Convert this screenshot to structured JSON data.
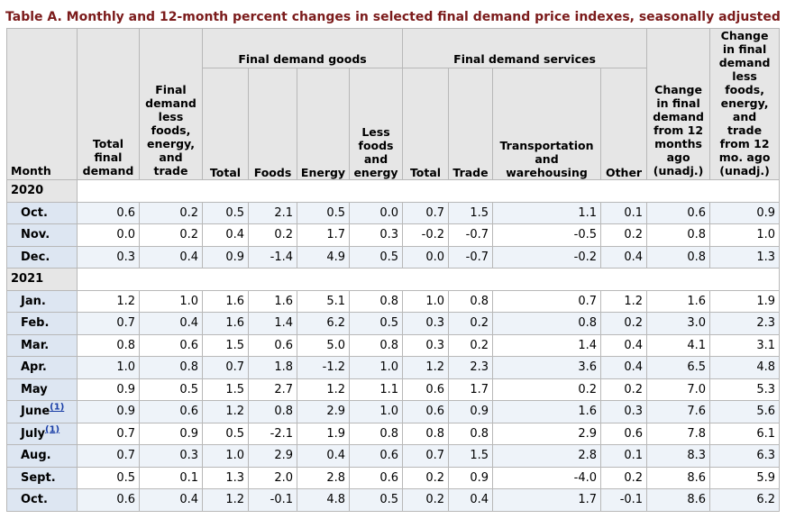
{
  "title": "Table A. Monthly and 12-month percent changes in selected final demand price indexes, seasonally adjusted",
  "header": {
    "month": "Month",
    "total_final_demand": [
      "Total",
      "final",
      "demand"
    ],
    "fd_less_fet": [
      "Final",
      "demand",
      "less",
      "foods,",
      "energy,",
      "and",
      "trade"
    ],
    "goods_group": "Final demand goods",
    "services_group": "Final demand services",
    "goods_total": "Total",
    "goods_foods": "Foods",
    "goods_energy": "Energy",
    "goods_less_fe": [
      "Less",
      "foods",
      "and",
      "energy"
    ],
    "services_total": "Total",
    "services_trade": "Trade",
    "services_transport": [
      "Transportation",
      "and",
      "warehousing"
    ],
    "services_other": "Other",
    "change_12mo": [
      "Change",
      "in final",
      "demand",
      "from 12",
      "months",
      "ago",
      "(unadj.)"
    ],
    "change_less_12mo": [
      "Change",
      "in final",
      "demand",
      "less",
      "foods,",
      "energy,",
      "and",
      "trade",
      "from 12",
      "mo. ago",
      "(unadj.)"
    ]
  },
  "sections": [
    {
      "year": "2020",
      "rows": [
        {
          "month": "Oct.",
          "fn": "",
          "v": [
            "0.6",
            "0.2",
            "0.5",
            "2.1",
            "0.5",
            "0.0",
            "0.7",
            "1.5",
            "1.1",
            "0.1",
            "0.6",
            "0.9"
          ]
        },
        {
          "month": "Nov.",
          "fn": "",
          "v": [
            "0.0",
            "0.2",
            "0.4",
            "0.2",
            "1.7",
            "0.3",
            "-0.2",
            "-0.7",
            "-0.5",
            "0.2",
            "0.8",
            "1.0"
          ]
        },
        {
          "month": "Dec.",
          "fn": "",
          "v": [
            "0.3",
            "0.4",
            "0.9",
            "-1.4",
            "4.9",
            "0.5",
            "0.0",
            "-0.7",
            "-0.2",
            "0.4",
            "0.8",
            "1.3"
          ]
        }
      ]
    },
    {
      "year": "2021",
      "rows": [
        {
          "month": "Jan.",
          "fn": "",
          "v": [
            "1.2",
            "1.0",
            "1.6",
            "1.6",
            "5.1",
            "0.8",
            "1.0",
            "0.8",
            "0.7",
            "1.2",
            "1.6",
            "1.9"
          ]
        },
        {
          "month": "Feb.",
          "fn": "",
          "v": [
            "0.7",
            "0.4",
            "1.6",
            "1.4",
            "6.2",
            "0.5",
            "0.3",
            "0.2",
            "0.8",
            "0.2",
            "3.0",
            "2.3"
          ]
        },
        {
          "month": "Mar.",
          "fn": "",
          "v": [
            "0.8",
            "0.6",
            "1.5",
            "0.6",
            "5.0",
            "0.8",
            "0.3",
            "0.2",
            "1.4",
            "0.4",
            "4.1",
            "3.1"
          ]
        },
        {
          "month": "Apr.",
          "fn": "",
          "v": [
            "1.0",
            "0.8",
            "0.7",
            "1.8",
            "-1.2",
            "1.0",
            "1.2",
            "2.3",
            "3.6",
            "0.4",
            "6.5",
            "4.8"
          ]
        },
        {
          "month": "May",
          "fn": "",
          "v": [
            "0.9",
            "0.5",
            "1.5",
            "2.7",
            "1.2",
            "1.1",
            "0.6",
            "1.7",
            "0.2",
            "0.2",
            "7.0",
            "5.3"
          ]
        },
        {
          "month": "June",
          "fn": "(1)",
          "v": [
            "0.9",
            "0.6",
            "1.2",
            "0.8",
            "2.9",
            "1.0",
            "0.6",
            "0.9",
            "1.6",
            "0.3",
            "7.6",
            "5.6"
          ]
        },
        {
          "month": "July",
          "fn": "(1)",
          "v": [
            "0.7",
            "0.9",
            "0.5",
            "-2.1",
            "1.9",
            "0.8",
            "0.8",
            "0.8",
            "2.9",
            "0.6",
            "7.8",
            "6.1"
          ]
        },
        {
          "month": "Aug.",
          "fn": "",
          "v": [
            "0.7",
            "0.3",
            "1.0",
            "2.9",
            "0.4",
            "0.6",
            "0.7",
            "1.5",
            "2.8",
            "0.1",
            "8.3",
            "6.3"
          ]
        },
        {
          "month": "Sept.",
          "fn": "",
          "v": [
            "0.5",
            "0.1",
            "1.3",
            "2.0",
            "2.8",
            "0.6",
            "0.2",
            "0.9",
            "-4.0",
            "0.2",
            "8.6",
            "5.9"
          ]
        },
        {
          "month": "Oct.",
          "fn": "",
          "v": [
            "0.6",
            "0.4",
            "1.2",
            "-0.1",
            "4.8",
            "0.5",
            "0.2",
            "0.4",
            "1.7",
            "-0.1",
            "8.6",
            "6.2"
          ]
        }
      ]
    }
  ]
}
